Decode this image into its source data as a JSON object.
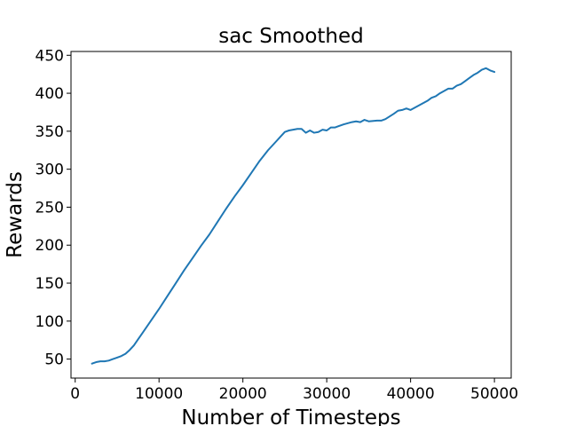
{
  "chart_data": {
    "type": "line",
    "title": "sac Smoothed",
    "xlabel": "Number of Timesteps",
    "ylabel": "Rewards",
    "xlim": [
      -500,
      52000
    ],
    "ylim": [
      25,
      455
    ],
    "x_ticks": [
      0,
      10000,
      20000,
      30000,
      40000,
      50000
    ],
    "y_ticks": [
      50,
      100,
      150,
      200,
      250,
      300,
      350,
      400,
      450
    ],
    "grid": false,
    "legend": "none",
    "line_color": "#1f77b4",
    "series": [
      {
        "x": [
          2000,
          2500,
          3000,
          3500,
          4000,
          4500,
          5000,
          5500,
          6000,
          6500,
          7000,
          7500,
          8000,
          8500,
          9000,
          9500,
          10000,
          11000,
          12000,
          13000,
          14000,
          15000,
          16000,
          17000,
          18000,
          19000,
          20000,
          21000,
          22000,
          23000,
          24000,
          24500,
          25000,
          25500,
          26000,
          26500,
          27000,
          27500,
          28000,
          28500,
          29000,
          29500,
          30000,
          30500,
          31000,
          32000,
          33000,
          33500,
          34000,
          34500,
          35000,
          36000,
          36500,
          37000,
          38000,
          38500,
          39000,
          39500,
          40000,
          41000,
          42000,
          42500,
          43000,
          43500,
          44000,
          44500,
          45000,
          45500,
          46000,
          46500,
          47000,
          47500,
          48000,
          48500,
          49000,
          49500,
          50000
        ],
        "y": [
          44,
          46,
          47,
          47,
          48,
          50,
          52,
          54,
          57,
          62,
          68,
          76,
          84,
          92,
          100,
          108,
          116,
          133,
          150,
          167,
          183,
          199,
          214,
          231,
          248,
          264,
          279,
          295,
          311,
          325,
          337,
          343,
          349,
          351,
          352,
          353,
          353,
          348,
          351,
          348,
          349,
          352,
          351,
          355,
          355,
          359,
          362,
          363,
          362,
          365,
          363,
          364,
          364,
          366,
          373,
          377,
          378,
          380,
          378,
          384,
          390,
          394,
          396,
          400,
          403,
          406,
          406,
          410,
          412,
          416,
          420,
          424,
          427,
          431,
          433,
          430,
          428
        ]
      }
    ]
  }
}
